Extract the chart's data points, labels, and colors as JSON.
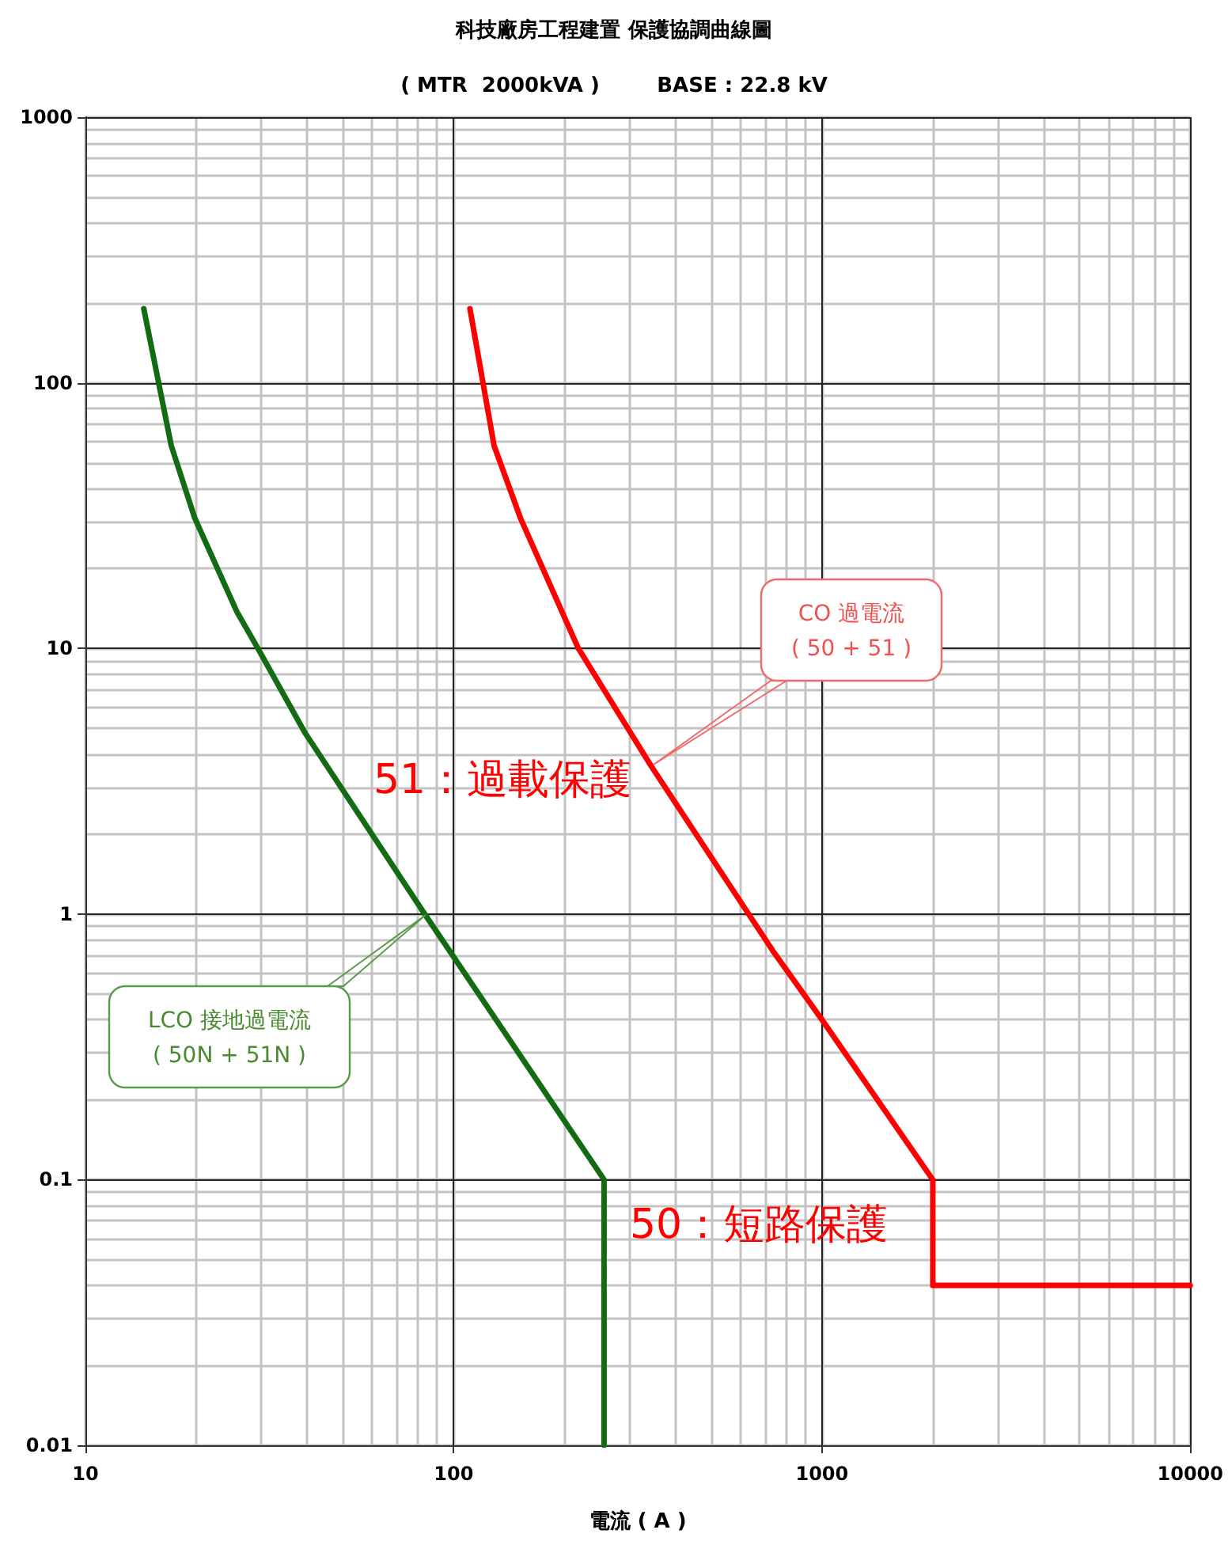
{
  "chart_data": {
    "type": "line",
    "title": "科技廠房工程建置 保護協調曲線圖",
    "subtitle": "( MTR  2000kVA )        BASE : 22.8 kV",
    "xlabel": "電流 ( A )",
    "log": "xy",
    "grid": true,
    "legend": false,
    "marker": "none",
    "line_style": "solid",
    "xlim": [
      10,
      10000
    ],
    "ylim": [
      0.01,
      1000
    ],
    "xticks": [
      10,
      {
        "value": 20,
        "label": null
      },
      {
        "value": 30,
        "label": null
      },
      {
        "value": 40,
        "label": null
      },
      {
        "value": 50,
        "label": null
      },
      {
        "value": 60,
        "label": null
      },
      {
        "value": 70,
        "label": null
      },
      {
        "value": 80,
        "label": null
      },
      {
        "value": 90,
        "label": null
      },
      100,
      {
        "value": 200,
        "label": null
      },
      {
        "value": 300,
        "label": null
      },
      {
        "value": 400,
        "label": null
      },
      {
        "value": 500,
        "label": null
      },
      {
        "value": 600,
        "label": null
      },
      {
        "value": 700,
        "label": null
      },
      {
        "value": 800,
        "label": null
      },
      {
        "value": 900,
        "label": null
      },
      1000,
      {
        "value": 2000,
        "label": null
      },
      {
        "value": 3000,
        "label": null
      },
      {
        "value": 4000,
        "label": null
      },
      {
        "value": 5000,
        "label": null
      },
      {
        "value": 6000,
        "label": null
      },
      {
        "value": 7000,
        "label": null
      },
      {
        "value": 8000,
        "label": null
      },
      {
        "value": 9000,
        "label": null
      },
      10000
    ],
    "yticks": [
      0.01,
      {
        "value": 0.02,
        "label": null
      },
      {
        "value": 0.03,
        "label": null
      },
      {
        "value": 0.04,
        "label": null
      },
      {
        "value": 0.05,
        "label": null
      },
      {
        "value": 0.06,
        "label": null
      },
      {
        "value": 0.07,
        "label": null
      },
      {
        "value": 0.08,
        "label": null
      },
      {
        "value": 0.09,
        "label": null
      },
      0.1,
      {
        "value": 0.2,
        "label": null
      },
      {
        "value": 0.3,
        "label": null
      },
      {
        "value": 0.4,
        "label": null
      },
      {
        "value": 0.5,
        "label": null
      },
      {
        "value": 0.6,
        "label": null
      },
      {
        "value": 0.7,
        "label": null
      },
      {
        "value": 0.8,
        "label": null
      },
      {
        "value": 0.9,
        "label": null
      },
      1,
      {
        "value": 2,
        "label": null
      },
      {
        "value": 3,
        "label": null
      },
      {
        "value": 4,
        "label": null
      },
      {
        "value": 5,
        "label": null
      },
      {
        "value": 6,
        "label": null
      },
      {
        "value": 7,
        "label": null
      },
      {
        "value": 8,
        "label": null
      },
      {
        "value": 9,
        "label": null
      },
      10,
      {
        "value": 20,
        "label": null
      },
      {
        "value": 30,
        "label": null
      },
      {
        "value": 40,
        "label": null
      },
      {
        "value": 50,
        "label": null
      },
      {
        "value": 60,
        "label": null
      },
      {
        "value": 70,
        "label": null
      },
      {
        "value": 80,
        "label": null
      },
      {
        "value": 90,
        "label": null
      },
      100,
      {
        "value": 200,
        "label": null
      },
      {
        "value": 300,
        "label": null
      },
      {
        "value": 400,
        "label": null
      },
      {
        "value": 500,
        "label": null
      },
      {
        "value": 600,
        "label": null
      },
      {
        "value": 700,
        "label": null
      },
      {
        "value": 800,
        "label": null
      },
      {
        "value": 900,
        "label": null
      },
      1000
    ],
    "series": [
      {
        "color": "#136b13",
        "x": [
          14.4,
          17.1,
          19.8,
          25.8,
          29.4,
          39.5,
          83.4,
          256,
          256
        ],
        "values": [
          190,
          58,
          31,
          13.7,
          10,
          4.8,
          1,
          0.1,
          0.01
        ]
      },
      {
        "color": "#ff0000",
        "x": [
          110.7,
          128.7,
          151.7,
          197,
          218,
          344,
          734,
          1000,
          2000,
          2000,
          10000
        ],
        "values": [
          190,
          58,
          31,
          13.7,
          10,
          3.6,
          0.73,
          0.4,
          0.1,
          0.04,
          0.04
        ]
      }
    ],
    "annotations": [
      "51：過載保護",
      "50：短路保護",
      "CO 過電流\n( 50 + 51 )",
      "LCO 接地過電流\n( 50N + 51N )"
    ]
  }
}
